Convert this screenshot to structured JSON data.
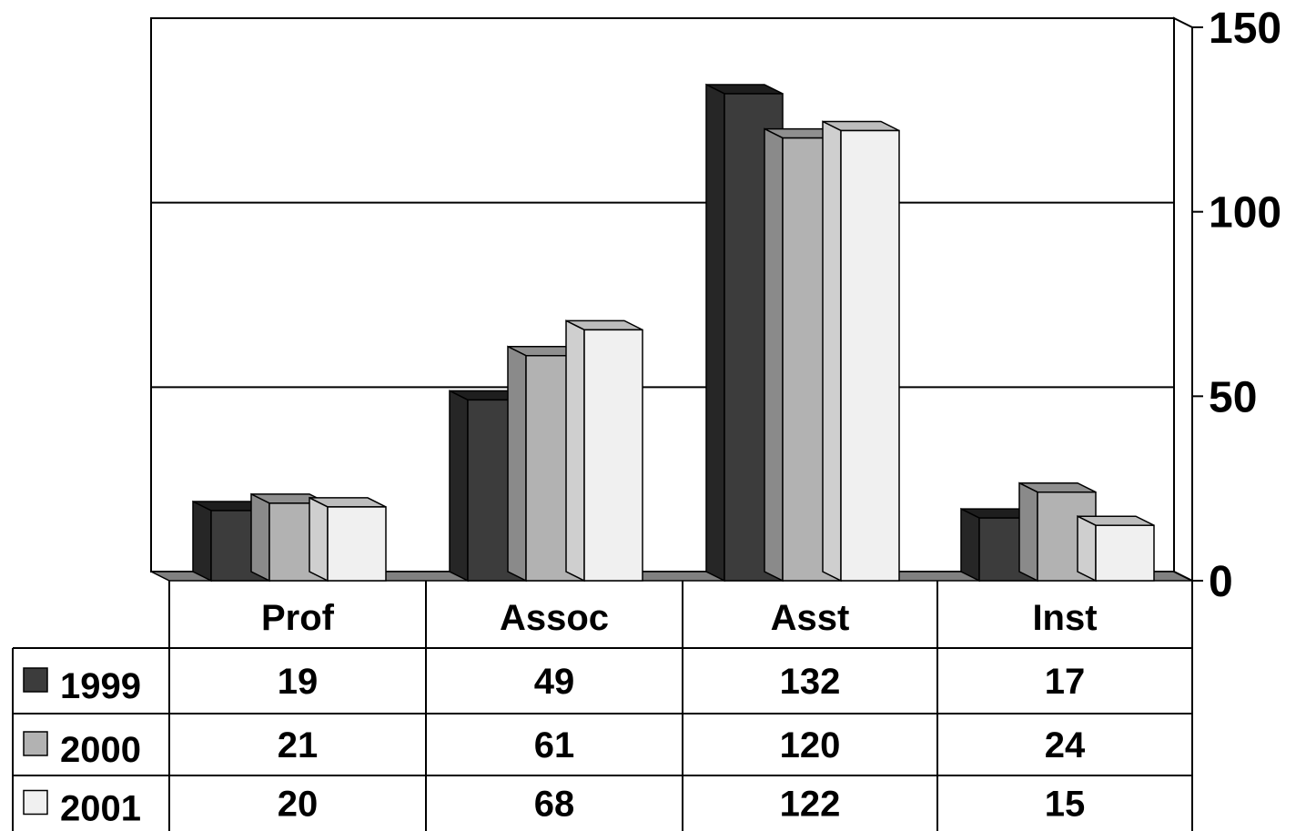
{
  "chart_data": {
    "type": "bar",
    "categories": [
      "Prof",
      "Assoc",
      "Asst",
      "Inst"
    ],
    "series": [
      {
        "name": "1999",
        "values": [
          19,
          49,
          132,
          17
        ],
        "color": "#3c3c3c",
        "side": "#262626",
        "top": "#1e1e1e"
      },
      {
        "name": "2000",
        "values": [
          21,
          61,
          120,
          24
        ],
        "color": "#b2b2b2",
        "side": "#8a8a8a",
        "top": "#8f8f8f"
      },
      {
        "name": "2001",
        "values": [
          20,
          68,
          122,
          15
        ],
        "color": "#f0f0f0",
        "side": "#cfcfcf",
        "top": "#bdbdbd"
      }
    ],
    "ylim": [
      0,
      150
    ],
    "yticks": [
      "0",
      "50",
      "100",
      "150"
    ],
    "ytick_values": [
      0,
      50,
      100,
      150
    ],
    "axis_side": "right",
    "grid": true,
    "style": "3d-clustered",
    "legend": "data-table-below"
  }
}
